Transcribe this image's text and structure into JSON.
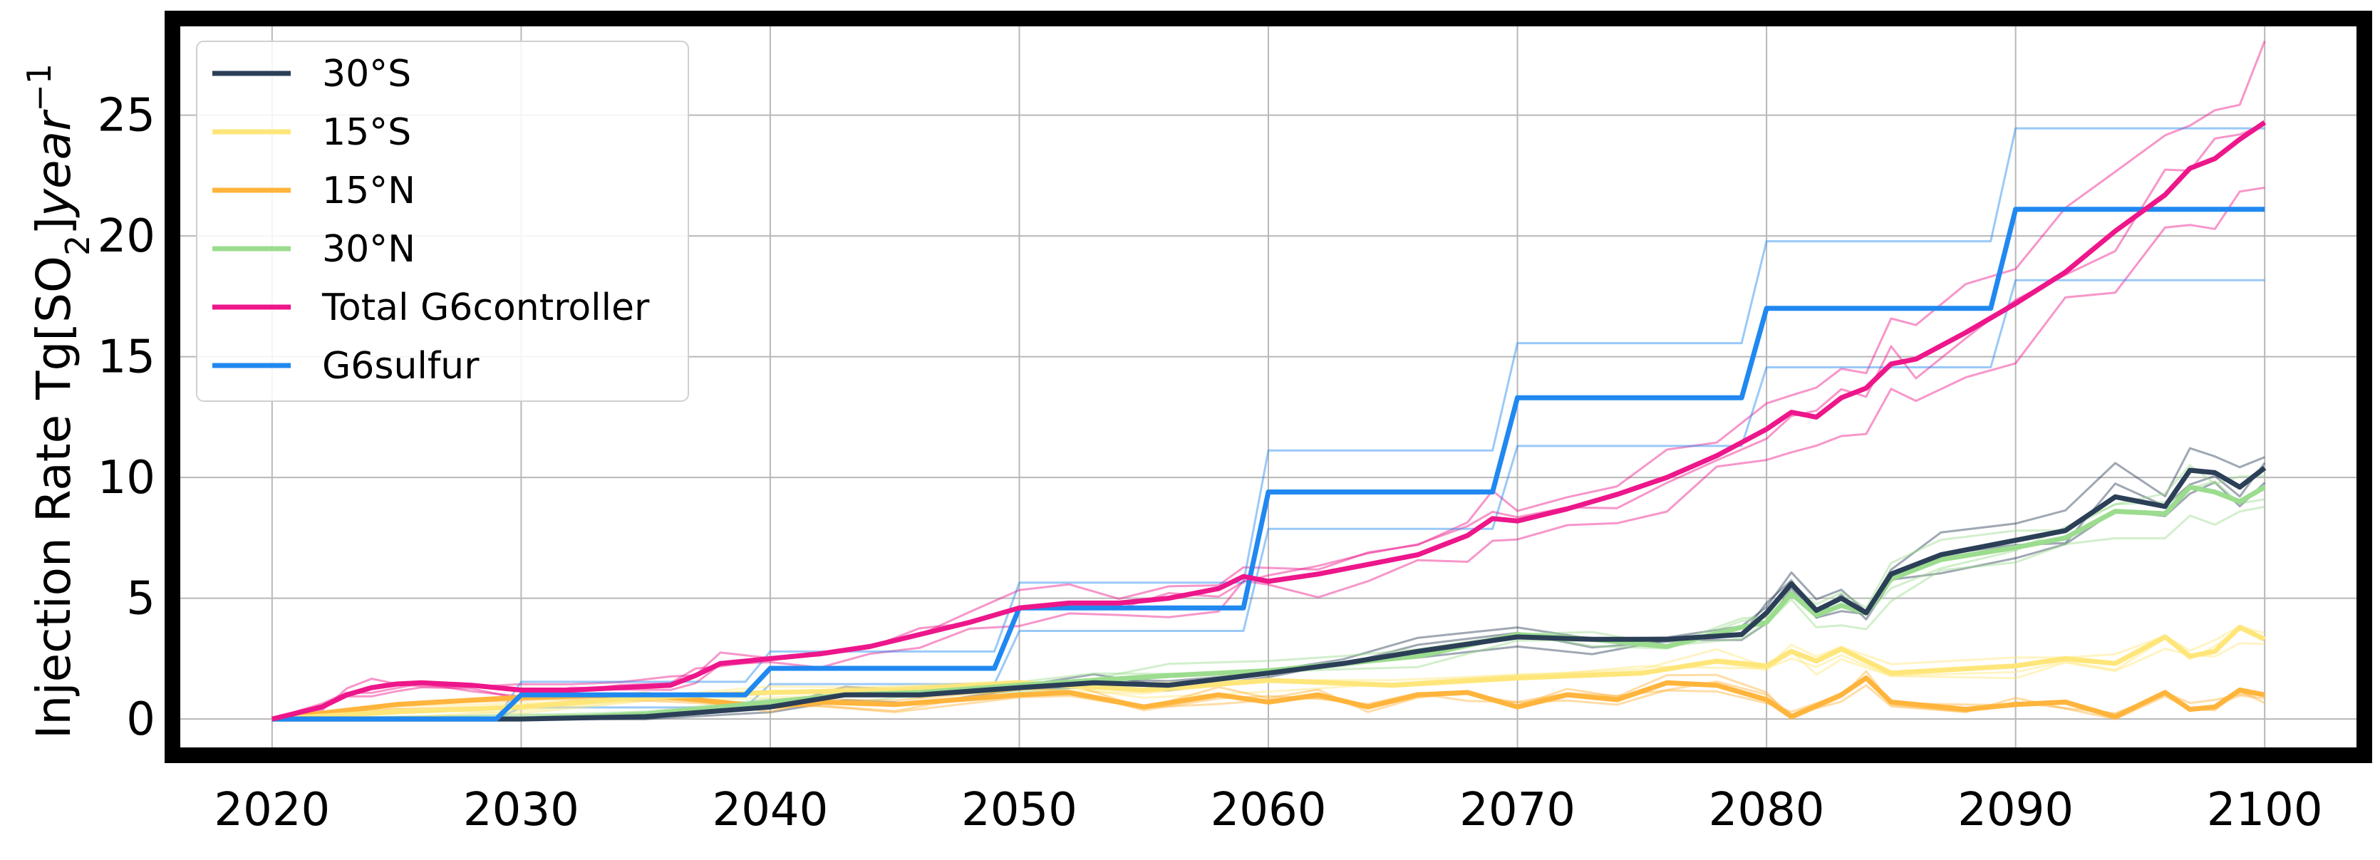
{
  "chart_data": {
    "type": "line",
    "ylabel": "Injection Rate Tg[SO2]year^-1",
    "ylabel_parts": {
      "main": "Injection Rate Tg[SO",
      "sub": "2",
      "mid": "]",
      "ital": "year",
      "sup": "−1"
    },
    "xlim": [
      2016,
      2104
    ],
    "ylim": [
      -1.5,
      29
    ],
    "xticks": [
      2020,
      2030,
      2040,
      2050,
      2060,
      2070,
      2080,
      2090,
      2100
    ],
    "yticks": [
      0,
      5,
      10,
      15,
      20,
      25
    ],
    "grid": true,
    "legend_position": "top-left",
    "legend": [
      {
        "label": "30°S",
        "color": "#2b3f57"
      },
      {
        "label": "15°S",
        "color": "#ffe67a"
      },
      {
        "label": "15°N",
        "color": "#ffb43c"
      },
      {
        "label": "30°N",
        "color": "#9bdc8e"
      },
      {
        "label": "Total G6controller",
        "color": "#ed168a"
      },
      {
        "label": "G6sulfur",
        "color": "#2088f0"
      }
    ],
    "series": [
      {
        "name": "Total G6controller",
        "color": "#ed168a",
        "x": [
          2020,
          2022,
          2023,
          2024,
          2025,
          2026,
          2028,
          2030,
          2032,
          2034,
          2036,
          2037,
          2038,
          2040,
          2042,
          2044,
          2046,
          2048,
          2050,
          2052,
          2054,
          2056,
          2058,
          2059,
          2060,
          2062,
          2064,
          2066,
          2068,
          2069,
          2070,
          2072,
          2074,
          2076,
          2078,
          2080,
          2081,
          2082,
          2083,
          2084,
          2085,
          2086,
          2088,
          2090,
          2092,
          2094,
          2096,
          2097,
          2098,
          2099,
          2100
        ],
        "y": [
          0,
          0.5,
          1.0,
          1.3,
          1.45,
          1.5,
          1.4,
          1.2,
          1.2,
          1.3,
          1.4,
          1.8,
          2.3,
          2.5,
          2.7,
          3.0,
          3.5,
          4.0,
          4.6,
          4.8,
          4.8,
          5.0,
          5.4,
          5.9,
          5.7,
          6.0,
          6.4,
          6.8,
          7.6,
          8.3,
          8.2,
          8.7,
          9.3,
          10.0,
          10.9,
          12.0,
          12.7,
          12.5,
          13.3,
          13.7,
          14.7,
          14.9,
          16.0,
          17.2,
          18.5,
          20.2,
          21.7,
          22.8,
          23.2,
          24.0,
          24.7
        ]
      },
      {
        "name": "G6sulfur",
        "color": "#2088f0",
        "x": [
          2020,
          2029,
          2030,
          2039,
          2040,
          2049,
          2050,
          2059,
          2060,
          2069,
          2070,
          2079,
          2080,
          2089,
          2090,
          2100
        ],
        "y": [
          0,
          0,
          1.0,
          1.0,
          2.1,
          2.1,
          4.6,
          4.6,
          9.4,
          9.4,
          13.3,
          13.3,
          17.0,
          17.0,
          21.1,
          21.1
        ]
      },
      {
        "name": "30°S",
        "color": "#2b3f57",
        "x": [
          2020,
          2030,
          2035,
          2040,
          2043,
          2046,
          2050,
          2053,
          2056,
          2060,
          2063,
          2066,
          2070,
          2073,
          2076,
          2079,
          2080,
          2081,
          2082,
          2083,
          2084,
          2085,
          2087,
          2090,
          2092,
          2094,
          2096,
          2097,
          2098,
          2099,
          2100
        ],
        "y": [
          0,
          0,
          0.1,
          0.5,
          1.0,
          1.0,
          1.3,
          1.5,
          1.4,
          1.9,
          2.3,
          2.8,
          3.4,
          3.3,
          3.3,
          3.5,
          4.4,
          5.6,
          4.5,
          5.0,
          4.4,
          6.0,
          6.8,
          7.4,
          7.8,
          9.2,
          8.8,
          10.3,
          10.2,
          9.6,
          10.4
        ]
      },
      {
        "name": "30°N",
        "color": "#9bdc8e",
        "x": [
          2020,
          2030,
          2035,
          2040,
          2043,
          2046,
          2050,
          2053,
          2056,
          2060,
          2063,
          2066,
          2070,
          2073,
          2076,
          2079,
          2080,
          2081,
          2082,
          2083,
          2084,
          2085,
          2087,
          2090,
          2092,
          2094,
          2096,
          2097,
          2098,
          2099,
          2100
        ],
        "y": [
          0,
          0,
          0.2,
          0.7,
          1.0,
          1.1,
          1.4,
          1.6,
          1.8,
          2.0,
          2.3,
          2.6,
          3.5,
          3.3,
          3.0,
          3.8,
          4.0,
          5.2,
          4.3,
          4.7,
          4.4,
          5.8,
          6.6,
          7.1,
          7.5,
          8.6,
          8.5,
          9.6,
          9.4,
          9.0,
          9.6
        ]
      },
      {
        "name": "15°S",
        "color": "#ffe67a",
        "x": [
          2020,
          2025,
          2030,
          2035,
          2040,
          2045,
          2050,
          2055,
          2060,
          2065,
          2070,
          2075,
          2078,
          2080,
          2081,
          2082,
          2083,
          2085,
          2090,
          2092,
          2094,
          2096,
          2097,
          2098,
          2099,
          2100
        ],
        "y": [
          0,
          0.3,
          0.5,
          0.9,
          1.1,
          1.2,
          1.5,
          1.2,
          1.6,
          1.4,
          1.7,
          1.9,
          2.4,
          2.2,
          2.8,
          2.4,
          2.9,
          1.9,
          2.2,
          2.5,
          2.3,
          3.4,
          2.6,
          2.8,
          3.8,
          3.3
        ]
      },
      {
        "name": "15°N",
        "color": "#ffb43c",
        "x": [
          2020,
          2025,
          2030,
          2035,
          2040,
          2042,
          2045,
          2050,
          2052,
          2055,
          2058,
          2060,
          2062,
          2064,
          2066,
          2068,
          2070,
          2072,
          2074,
          2076,
          2078,
          2080,
          2081,
          2083,
          2084,
          2085,
          2088,
          2090,
          2092,
          2094,
          2096,
          2097,
          2098,
          2099,
          2100
        ],
        "y": [
          0,
          0.6,
          0.9,
          1.0,
          0.5,
          0.7,
          0.6,
          1.0,
          1.1,
          0.5,
          1.0,
          0.7,
          1.0,
          0.5,
          1.0,
          1.1,
          0.5,
          1.0,
          0.8,
          1.5,
          1.4,
          0.8,
          0.1,
          1.0,
          1.7,
          0.7,
          0.4,
          0.6,
          0.7,
          0.1,
          1.1,
          0.4,
          0.5,
          1.2,
          1.0
        ]
      }
    ]
  }
}
